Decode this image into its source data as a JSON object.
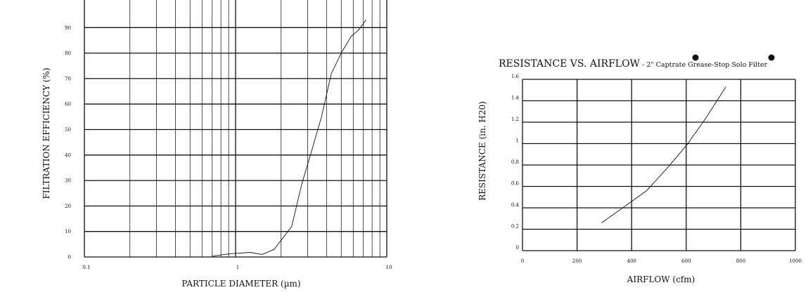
{
  "chart_data": [
    {
      "type": "line",
      "xscale": "log",
      "xlim": [
        0.1,
        10
      ],
      "ylim": [
        0,
        100
      ],
      "xticks": [
        "0.1",
        "1",
        "10"
      ],
      "yticks": [
        "0",
        "10",
        "20",
        "30",
        "40",
        "50",
        "60",
        "70",
        "80",
        "90"
      ],
      "xlabel": "PARTICLE DIAMETER (µm)",
      "ylabel": "FILTRATION EFFICIENCY (%)",
      "grid": true,
      "series": [
        {
          "x": [
            0.7,
            0.9,
            1.05,
            1.25,
            1.5,
            1.8,
            2.35,
            2.75,
            3.2,
            3.7,
            4.3,
            5.0,
            5.8,
            6.5,
            7.3
          ],
          "y": [
            0.3,
            1.2,
            1.5,
            1.8,
            1.0,
            3.0,
            12.0,
            29.0,
            42.0,
            55.0,
            72.0,
            80.0,
            86.5,
            89.0,
            93.0
          ]
        }
      ]
    },
    {
      "type": "line",
      "title_main": "RESISTANCE VS. AIRFLOW",
      "title_rest": " - 2\" Captrate Grease-Stop Solo Filter",
      "xlim": [
        0,
        1000
      ],
      "ylim": [
        0,
        1.6
      ],
      "xticks": [
        "0",
        "200",
        "400",
        "600",
        "800",
        "1000"
      ],
      "yticks": [
        "0",
        "0.2",
        "0.4",
        "0.6",
        "0.8",
        "1",
        "1.2",
        "1.4",
        "1.6"
      ],
      "xlabel": "AIRFLOW (cfm)",
      "ylabel": "RESISTANCE (in. H20)",
      "grid": true,
      "series": [
        {
          "x": [
            290,
            345,
            400,
            455,
            530,
            600,
            670,
            745
          ],
          "y": [
            0.26,
            0.36,
            0.46,
            0.56,
            0.77,
            0.98,
            1.23,
            1.53
          ]
        }
      ]
    }
  ]
}
